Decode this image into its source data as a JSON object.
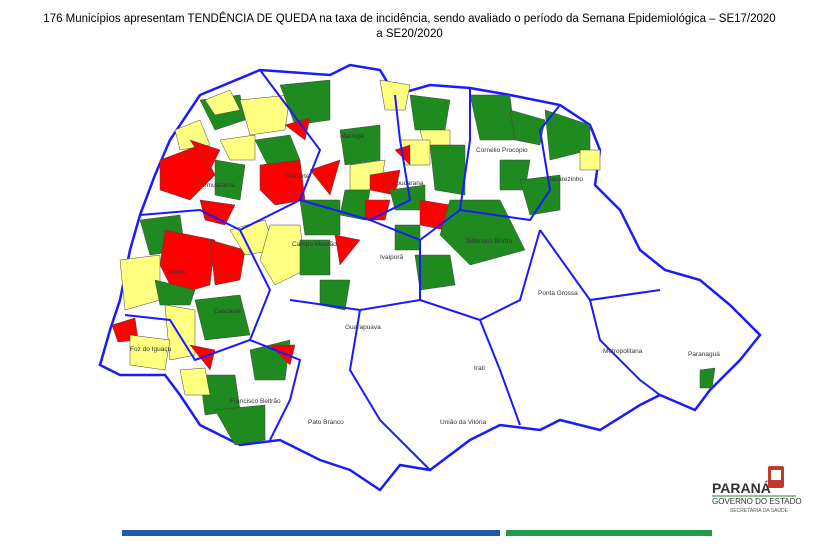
{
  "title": "176 Municípios apresentam TENDÊNCIA DE QUEDA na taxa de incidência, sendo avaliado o período da Semana Epidemiológica – SE17/2020 a SE20/2020",
  "cities": [
    {
      "label": "Umuarama"
    },
    {
      "label": "Cianorte"
    },
    {
      "label": "Maringá"
    },
    {
      "label": "Apucarana"
    },
    {
      "label": "Cornélio Procópio"
    },
    {
      "label": "Jacarezinho"
    },
    {
      "label": "Campo Mourão"
    },
    {
      "label": "Telêmaco Borba"
    },
    {
      "label": "Ivaiporã"
    },
    {
      "label": "Toledo"
    },
    {
      "label": "Ponta Grossa"
    },
    {
      "label": "Cascavel"
    },
    {
      "label": "Guarapuava"
    },
    {
      "label": "Foz do Iguaçu"
    },
    {
      "label": "Metropolitana"
    },
    {
      "label": "Paranaguá"
    },
    {
      "label": "Irati"
    },
    {
      "label": "Francisco Beltrão"
    },
    {
      "label": "União da Vitória"
    },
    {
      "label": "Pato Branco"
    }
  ],
  "logo": {
    "name": "PARANÁ",
    "line1": "GOVERNO DO ESTADO",
    "line2": "SECRETARIA DA SAÚDE"
  }
}
